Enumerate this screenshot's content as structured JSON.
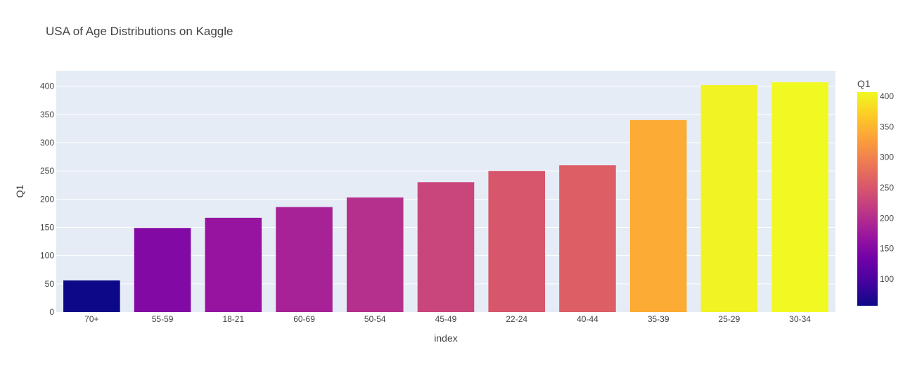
{
  "chart_data": {
    "type": "bar",
    "title": "USA of Age Distributions on Kaggle",
    "xlabel": "index",
    "ylabel": "Q1",
    "categories": [
      "70+",
      "55-59",
      "18-21",
      "60-69",
      "50-54",
      "45-49",
      "22-24",
      "40-44",
      "35-39",
      "25-29",
      "30-34"
    ],
    "values": [
      56,
      149,
      167,
      186,
      203,
      230,
      250,
      260,
      340,
      402,
      407
    ],
    "ylim": [
      0,
      427
    ],
    "yticks": [
      0,
      50,
      100,
      150,
      200,
      250,
      300,
      350,
      400
    ],
    "grid": true,
    "colorbar": {
      "title": "Q1",
      "min": 56,
      "max": 407,
      "ticks": [
        100,
        150,
        200,
        250,
        300,
        350,
        400
      ],
      "colorscale": [
        "#0d0887",
        "#46039f",
        "#7201a8",
        "#9c179e",
        "#bd3786",
        "#d8576b",
        "#ed7953",
        "#fb9f3a",
        "#fdca26",
        "#f0f921"
      ]
    },
    "colors": {
      "plot_bg": "#e5ecf6",
      "grid": "#ffffff",
      "text": "#444444"
    }
  }
}
